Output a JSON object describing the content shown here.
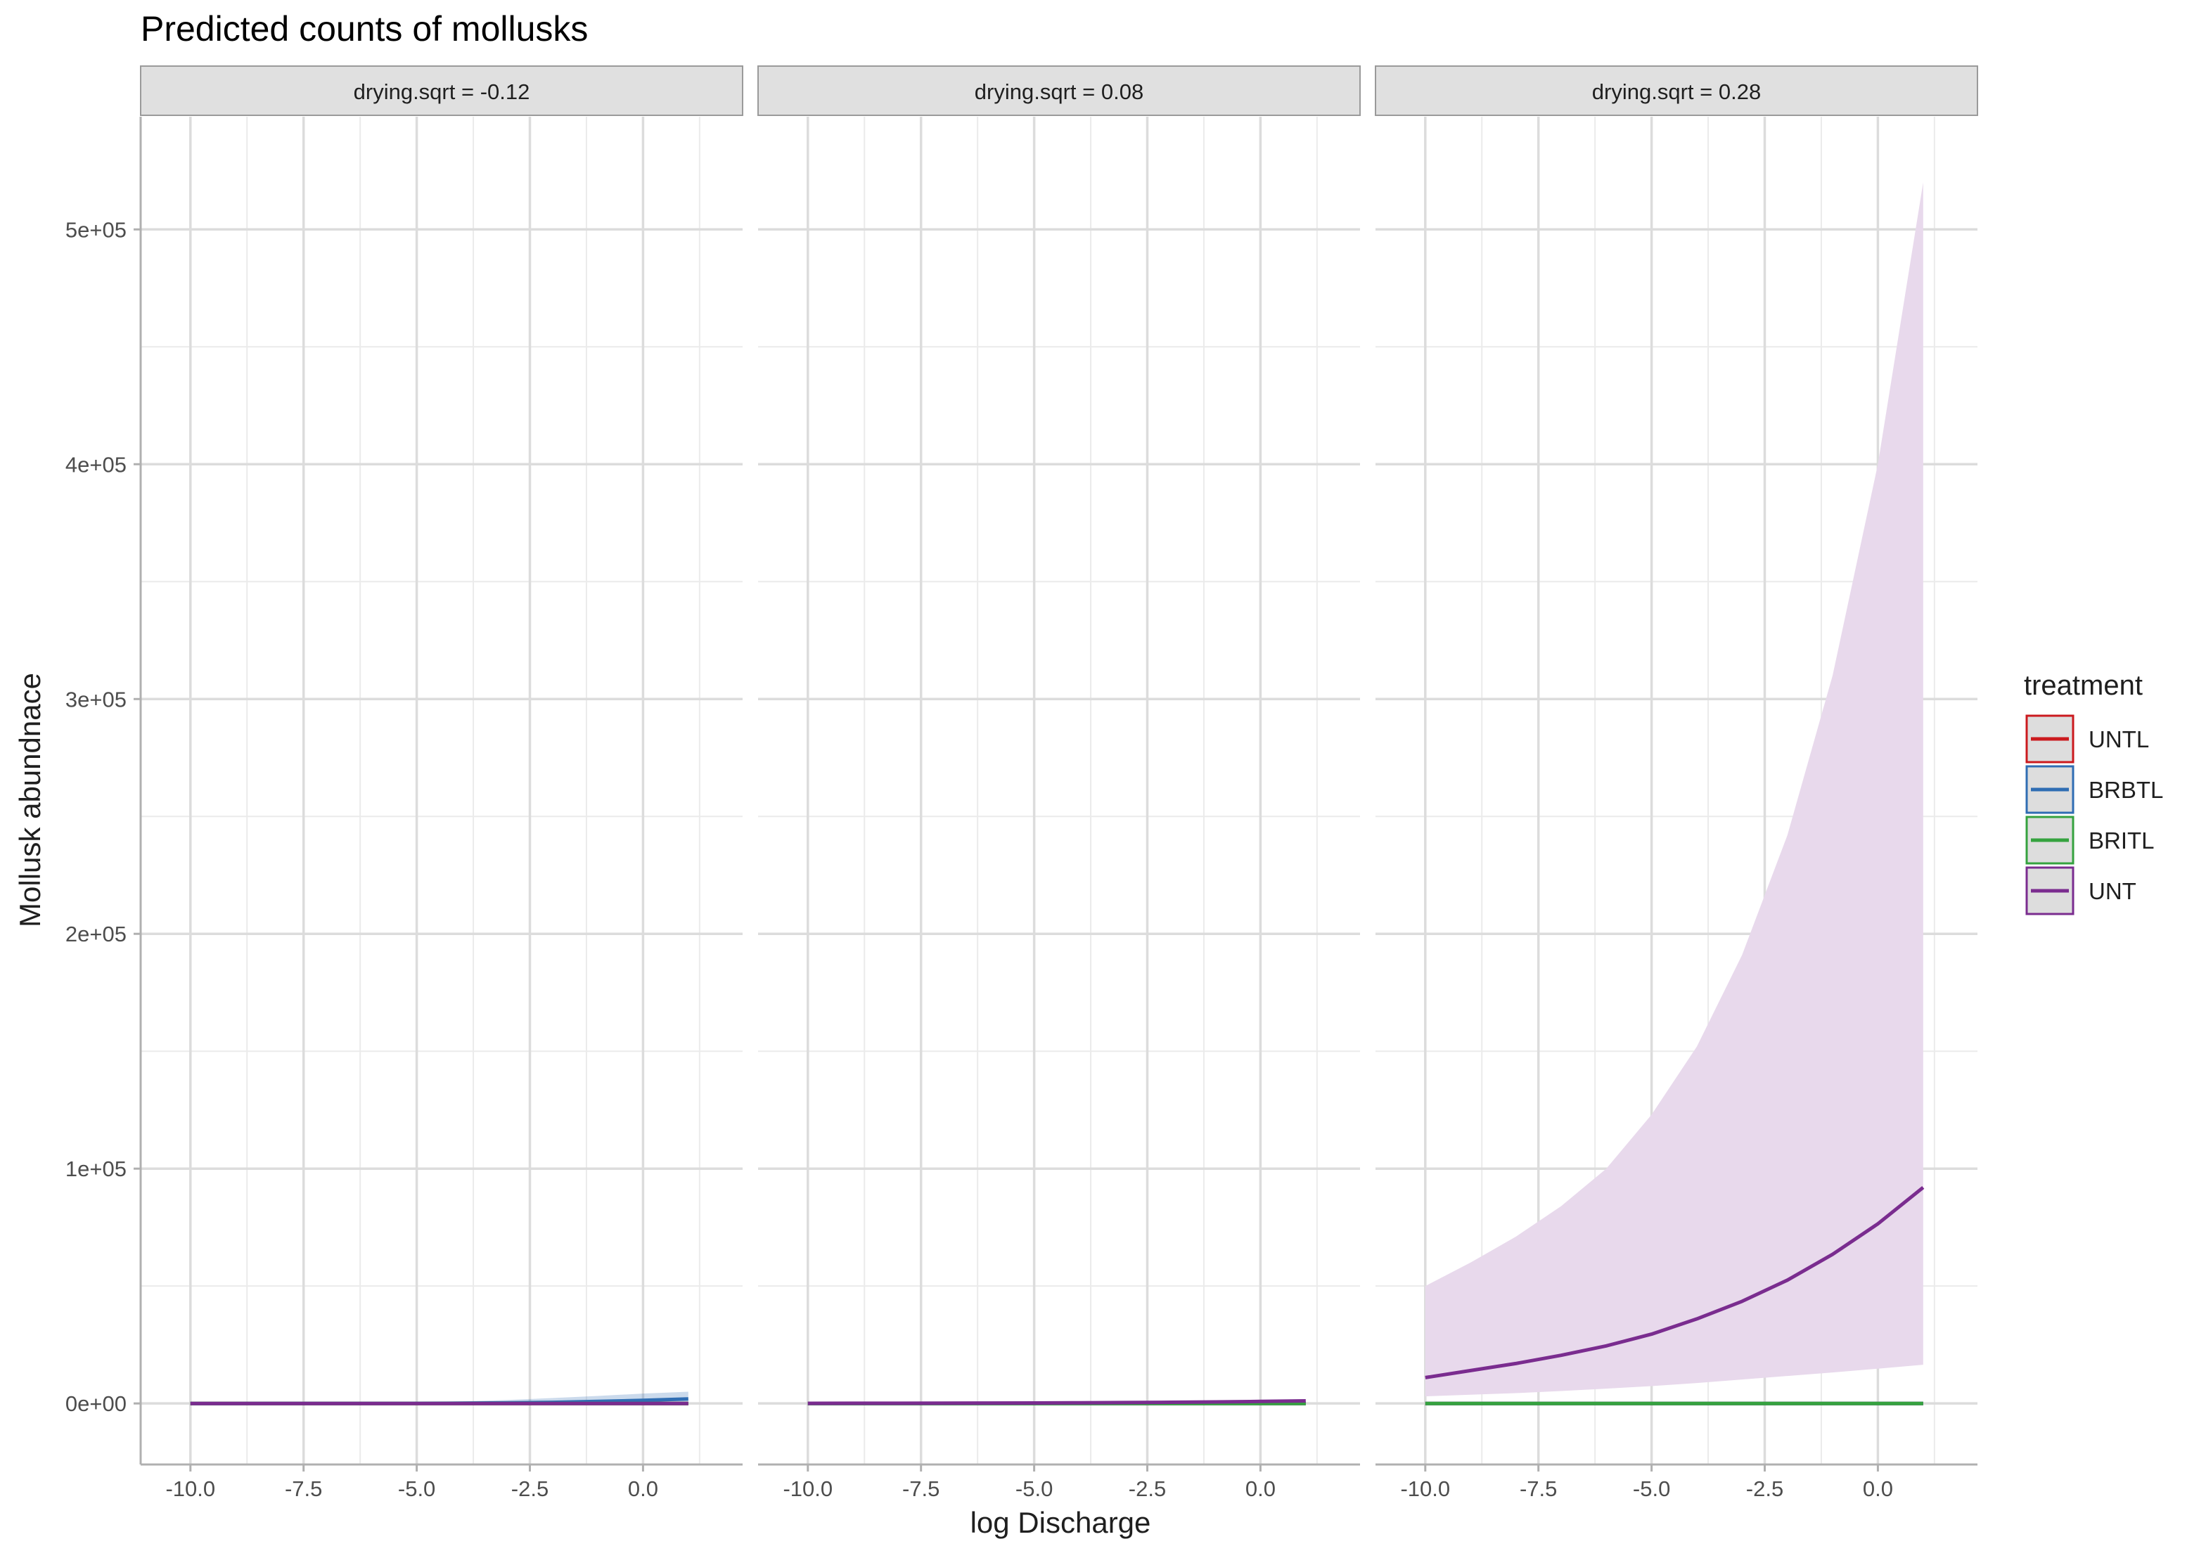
{
  "chart_data": {
    "type": "line",
    "title": "Predicted counts of mollusks",
    "xlabel": "log Discharge",
    "ylabel": "Mollusk abundnace",
    "xlim": [
      -11.1,
      2.2
    ],
    "ylim": [
      -26000,
      548000
    ],
    "x_ticks": [
      -10,
      -7.5,
      -5,
      -2.5,
      0
    ],
    "x_tick_labels": [
      "-10.0",
      "-7.5",
      "-5.0",
      "-2.5",
      "0.0"
    ],
    "x_minor": [
      -8.75,
      -6.25,
      -3.75,
      -1.25,
      1.25
    ],
    "y_ticks": [
      0,
      100000,
      200000,
      300000,
      400000,
      500000
    ],
    "y_tick_labels": [
      "0e+00",
      "1e+05",
      "2e+05",
      "3e+05",
      "4e+05",
      "5e+05"
    ],
    "y_minor": [
      50000,
      150000,
      250000,
      350000,
      450000
    ],
    "grid": true,
    "legend": {
      "title": "treatment",
      "position": "right",
      "items": [
        {
          "label": "UNTL",
          "color": "#cb1a1e"
        },
        {
          "label": "BRBTL",
          "color": "#2f6db3"
        },
        {
          "label": "BRITL",
          "color": "#35a23f"
        },
        {
          "label": "UNT",
          "color": "#7a2c8f"
        }
      ]
    },
    "x": [
      -10,
      -9,
      -8,
      -7,
      -6,
      -5,
      -4,
      -3,
      -2,
      -1,
      0,
      1
    ],
    "panels": [
      {
        "strip": "drying.sqrt = -0.12",
        "series": [
          {
            "name": "UNTL",
            "color": "#cb1a1e",
            "values": [
              0,
              0,
              0,
              0,
              0,
              0,
              0,
              0,
              0,
              0,
              0,
              0
            ]
          },
          {
            "name": "BRBTL",
            "color": "#2f6db3",
            "values": [
              2,
              4,
              8,
              15,
              30,
              60,
              120,
              240,
              480,
              850,
              1300,
              1900
            ],
            "lower": [
              0,
              0,
              0,
              0,
              0,
              0,
              0,
              0,
              0,
              0,
              0,
              0
            ],
            "upper": [
              20,
              40,
              80,
              150,
              300,
              500,
              900,
              1500,
              2300,
              3200,
              4200,
              5000
            ]
          },
          {
            "name": "BRITL",
            "color": "#35a23f",
            "values": [
              0,
              0,
              0,
              0,
              0,
              0,
              0,
              0,
              0,
              0,
              0,
              0
            ]
          },
          {
            "name": "UNT",
            "color": "#7a2c8f",
            "values": [
              0,
              0,
              0,
              0,
              0,
              0,
              0,
              0,
              0,
              0,
              0,
              0
            ]
          }
        ]
      },
      {
        "strip": "drying.sqrt = 0.08",
        "series": [
          {
            "name": "UNTL",
            "color": "#cb1a1e",
            "values": [
              0,
              0,
              0,
              0,
              0,
              0,
              0,
              0,
              0,
              0,
              0,
              0
            ]
          },
          {
            "name": "BRBTL",
            "color": "#2f6db3",
            "values": [
              0,
              0,
              0,
              0,
              0,
              0,
              0,
              0,
              0,
              0,
              0,
              0
            ]
          },
          {
            "name": "BRITL",
            "color": "#35a23f",
            "values": [
              0,
              0,
              0,
              0,
              0,
              0,
              0,
              0,
              0,
              0,
              0,
              0
            ]
          },
          {
            "name": "UNT",
            "color": "#7a2c8f",
            "values": [
              50,
              70,
              90,
              120,
              160,
              210,
              280,
              370,
              490,
              650,
              860,
              1100
            ]
          }
        ]
      },
      {
        "strip": "drying.sqrt = 0.28",
        "series": [
          {
            "name": "UNTL",
            "color": "#cb1a1e",
            "values": [
              0,
              0,
              0,
              0,
              0,
              0,
              0,
              0,
              0,
              0,
              0,
              0
            ]
          },
          {
            "name": "BRBTL",
            "color": "#2f6db3",
            "values": [
              0,
              0,
              0,
              0,
              0,
              0,
              0,
              0,
              0,
              0,
              0,
              0
            ]
          },
          {
            "name": "BRITL",
            "color": "#35a23f",
            "values": [
              0,
              0,
              0,
              0,
              0,
              0,
              0,
              0,
              0,
              0,
              0,
              0
            ]
          },
          {
            "name": "UNT",
            "color": "#7a2c8f",
            "values": [
              11000,
              14000,
              17000,
              20500,
              24500,
              29500,
              36000,
              43500,
              52500,
              63500,
              76500,
              92000
            ],
            "lower": [
              3000,
              3700,
              4400,
              5300,
              6300,
              7400,
              8700,
              10200,
              11700,
              13200,
              14800,
              16500
            ],
            "upper": [
              50000,
              60000,
              71000,
              84000,
              100000,
              123000,
              152000,
              191000,
              242000,
              310000,
              400000,
              520000
            ],
            "band_color": "#e8d9ec"
          }
        ]
      }
    ]
  }
}
